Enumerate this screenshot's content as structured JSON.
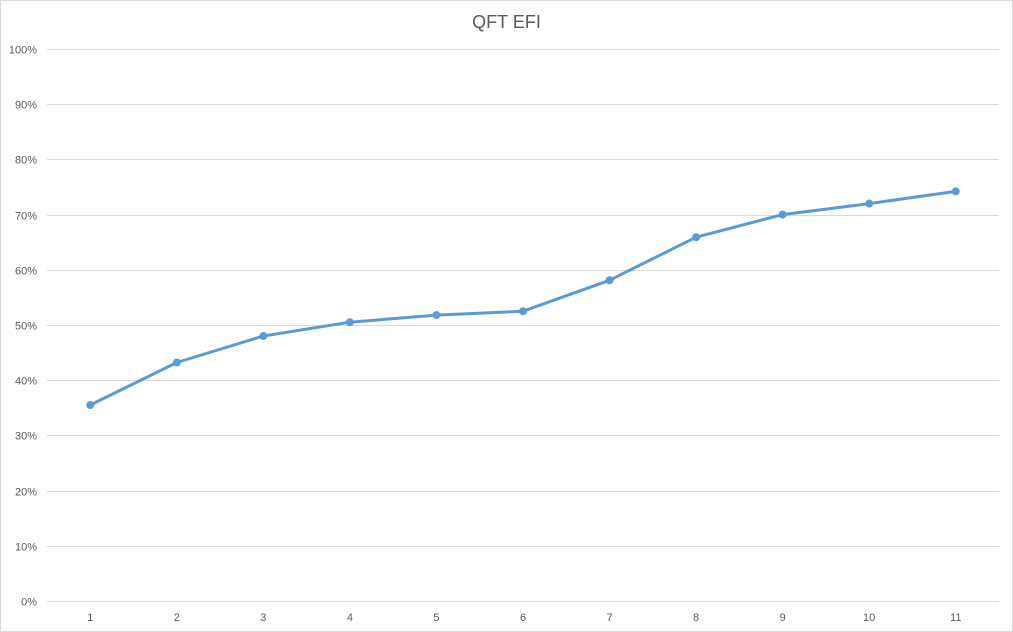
{
  "chart_data": {
    "type": "line",
    "title": "QFT EFI",
    "xlabel": "",
    "ylabel": "",
    "categories": [
      "1",
      "2",
      "3",
      "4",
      "5",
      "6",
      "7",
      "8",
      "9",
      "10",
      "11"
    ],
    "series": [
      {
        "name": "QFT EFI",
        "values": [
          35.5,
          43.2,
          48.0,
          50.5,
          51.8,
          52.5,
          58.1,
          65.9,
          70.0,
          72.0,
          74.2
        ]
      }
    ],
    "ylim": [
      0,
      100
    ],
    "yticks": [
      "0%",
      "10%",
      "20%",
      "30%",
      "40%",
      "50%",
      "60%",
      "70%",
      "80%",
      "90%",
      "100%"
    ],
    "grid": true,
    "legend": "none",
    "colors": {
      "line": "#5b9bd5",
      "grid": "#d9d9d9",
      "text": "#595959"
    }
  }
}
